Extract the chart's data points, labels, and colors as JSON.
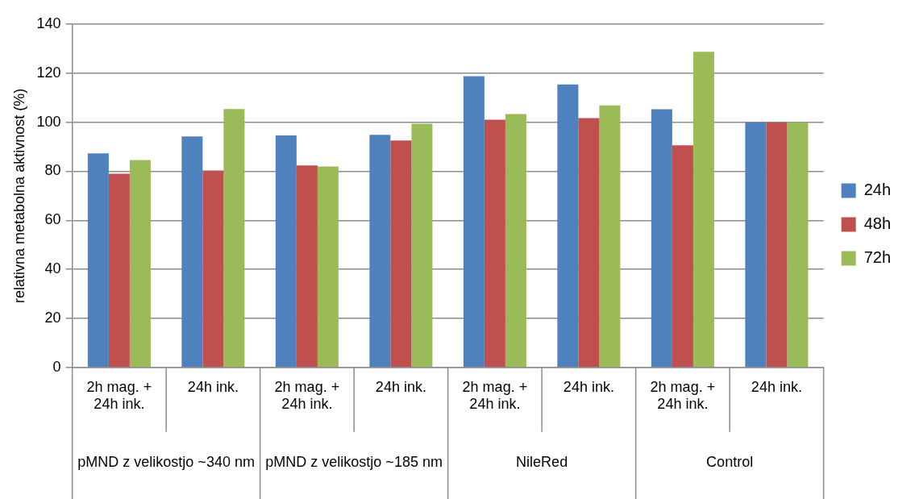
{
  "chart_data": {
    "type": "bar",
    "ylabel": "relativna metabolna aktivnost (%)",
    "categories": [
      "2h mag. + 24h ink.",
      "24h ink.",
      "2h mag. + 24h ink.",
      "24h ink.",
      "2h mag. + 24h ink.",
      "24h ink.",
      "2h mag. + 24h ink.",
      "24h ink."
    ],
    "series": [
      {
        "name": "24h",
        "color": "#4f81bd",
        "values": [
          87.3,
          94.2,
          94.6,
          94.9,
          118.8,
          115.4,
          105.3,
          100
        ]
      },
      {
        "name": "48h",
        "color": "#c0504d",
        "values": [
          79.0,
          80.3,
          82.4,
          92.6,
          101.0,
          101.7,
          90.6,
          100
        ]
      },
      {
        "name": "72h",
        "color": "#9bbb59",
        "values": [
          84.6,
          105.4,
          82.0,
          99.4,
          103.3,
          106.9,
          128.7,
          100
        ]
      }
    ],
    "annotations": [
      "pMND z velikostjo ~340 nm",
      "pMND z velikostjo ~185 nm",
      "NileRed",
      "Control"
    ],
    "ylim": [
      0,
      140
    ],
    "yticks": [
      0,
      20,
      40,
      60,
      80,
      100,
      120,
      140
    ],
    "grid": "y",
    "legend": "right"
  }
}
